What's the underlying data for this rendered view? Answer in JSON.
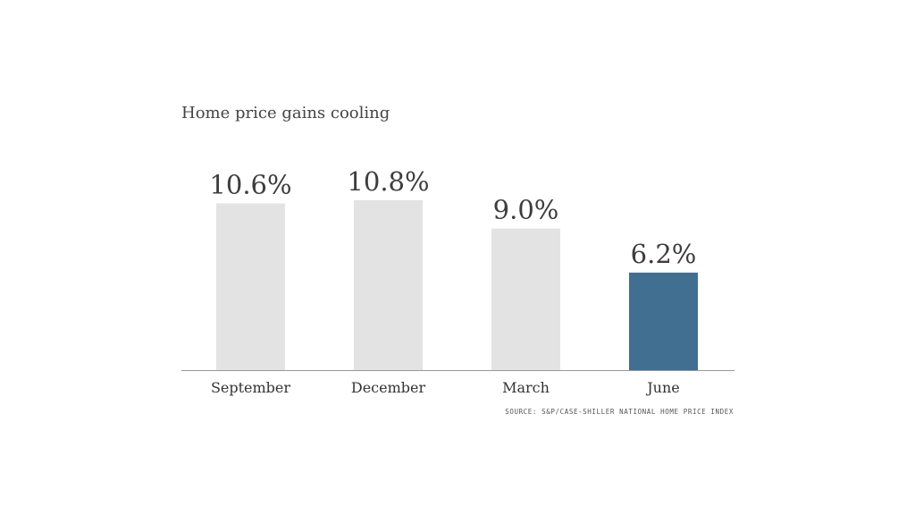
{
  "chart_data": {
    "type": "bar",
    "title": "Home price gains cooling",
    "categories": [
      "September",
      "December",
      "March",
      "June"
    ],
    "values": [
      10.6,
      10.8,
      9.0,
      6.2
    ],
    "value_labels": [
      "10.6%",
      "10.8%",
      "9.0%",
      "6.2%"
    ],
    "ylim": [
      0,
      12
    ],
    "grid": false,
    "highlight_index": 3,
    "colors": {
      "bar": "#e3e3e3",
      "highlight": "#416f92",
      "axis": "#999999"
    },
    "source": "SOURCE: S&P/CASE-SHILLER NATIONAL HOME PRICE INDEX"
  }
}
